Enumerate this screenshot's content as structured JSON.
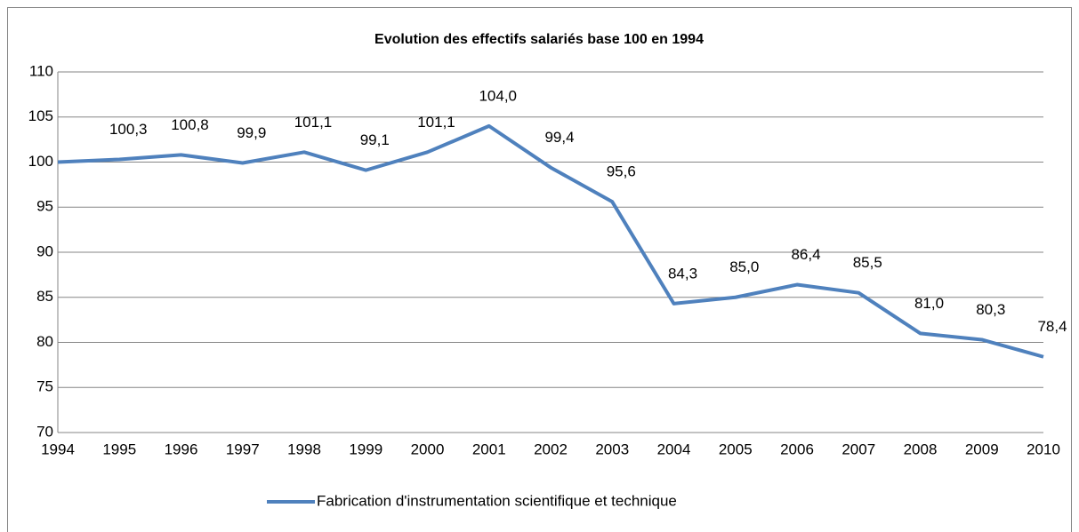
{
  "chart_data": {
    "type": "line",
    "title": "Evolution des effectifs salariés base 100 en 1994",
    "categories": [
      "1994",
      "1995",
      "1996",
      "1997",
      "1998",
      "1999",
      "2000",
      "2001",
      "2002",
      "2003",
      "2004",
      "2005",
      "2006",
      "2007",
      "2008",
      "2009",
      "2010"
    ],
    "series": [
      {
        "name": "Fabrication d'instrumentation scientifique et technique",
        "color": "#4f81bd",
        "values": [
          100,
          100.3,
          100.8,
          99.9,
          101.1,
          99.1,
          101.1,
          104.0,
          99.4,
          95.6,
          84.3,
          85.0,
          86.4,
          85.5,
          81.0,
          80.3,
          78.4
        ],
        "value_labels": [
          null,
          "100,3",
          "100,8",
          "99,9",
          "101,1",
          "99,1",
          "101,1",
          "104,0",
          "99,4",
          "95,6",
          "84,3",
          "85,0",
          "86,4",
          "85,5",
          "81,0",
          "80,3",
          "78,4"
        ]
      }
    ],
    "ylim": [
      70,
      110
    ],
    "yticks": [
      70,
      75,
      80,
      85,
      90,
      95,
      100,
      105,
      110
    ],
    "grid": true,
    "legend": "bottom"
  }
}
